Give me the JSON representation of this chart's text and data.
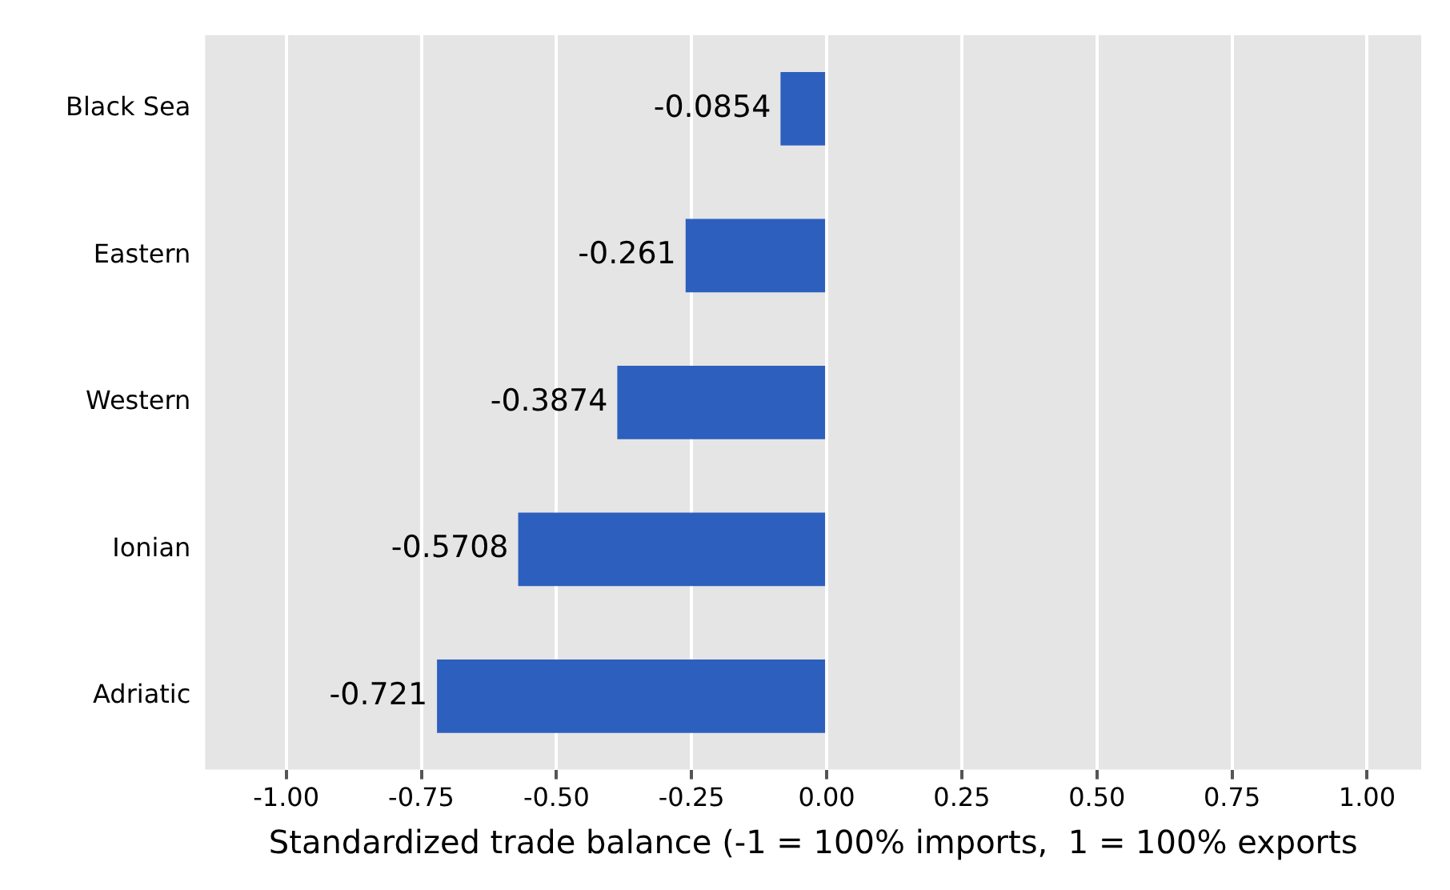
{
  "chart_data": {
    "type": "bar",
    "orientation": "horizontal",
    "xlabel": "Standardized trade balance (-1 = 100% imports,  1 = 100% exports",
    "categories": [
      "Black Sea",
      "Eastern",
      "Western",
      "Ionian",
      "Adriatic"
    ],
    "values": [
      -0.0854,
      -0.261,
      -0.3874,
      -0.5708,
      -0.721
    ],
    "color": "#2d5fbe",
    "xlim": [
      -1.15,
      1.1
    ],
    "xticks": [
      {
        "value": -1,
        "label": "-1.00"
      },
      {
        "value": -0.75,
        "label": "-0.75"
      },
      {
        "value": -0.5,
        "label": "-0.50"
      },
      {
        "value": -0.25,
        "label": "-0.25"
      },
      {
        "value": 0,
        "label": "0.00"
      },
      0.25,
      {
        "value": 0.5,
        "label": "0.50"
      },
      0.75,
      {
        "value": 1,
        "label": "1.00"
      }
    ],
    "grid": "x",
    "data_labels": true,
    "legend": false
  }
}
